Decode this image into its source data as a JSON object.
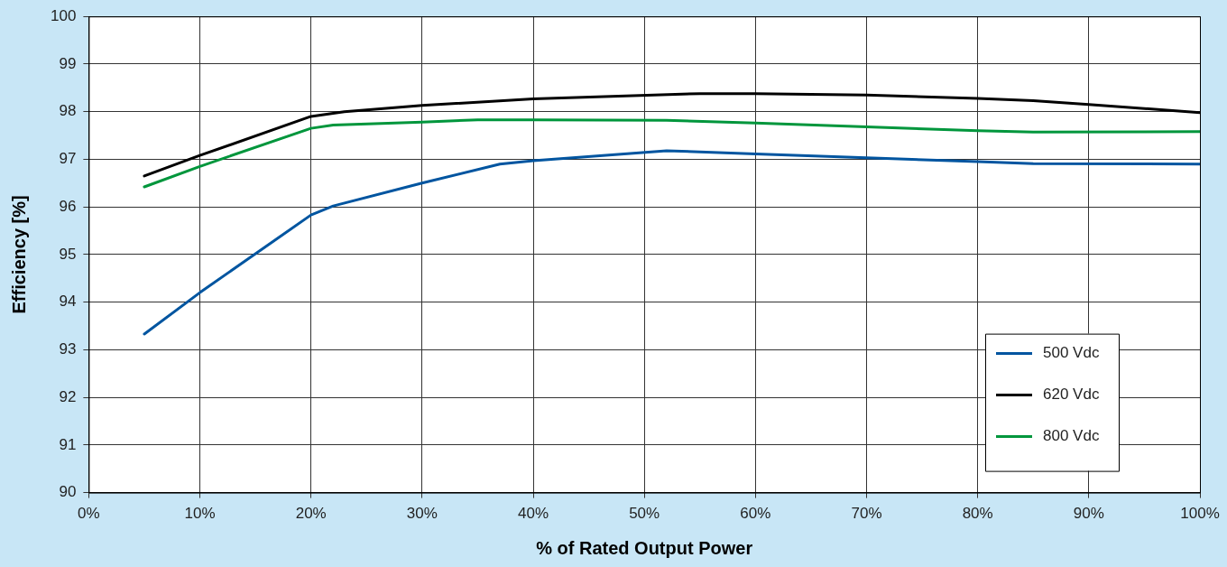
{
  "chart_data": {
    "type": "line",
    "xlabel": "% of Rated Output Power",
    "ylabel": "Efficiency [%]",
    "xlim": [
      0,
      100
    ],
    "xticks": [
      {
        "value": 0,
        "label": "0%"
      },
      {
        "value": 10,
        "label": "10%"
      },
      {
        "value": 20,
        "label": "20%"
      },
      {
        "value": 30,
        "label": "30%"
      },
      {
        "value": 40,
        "label": "40%"
      },
      {
        "value": 50,
        "label": "50%"
      },
      {
        "value": 60,
        "label": "60%"
      },
      {
        "value": 70,
        "label": "70%"
      },
      {
        "value": 80,
        "label": "80%"
      },
      {
        "value": 90,
        "label": "90%"
      },
      {
        "value": 100,
        "label": "100%"
      }
    ],
    "ylim": [
      90,
      100
    ],
    "yticks": [
      90,
      91,
      92,
      93,
      94,
      95,
      96,
      97,
      98,
      99,
      100
    ],
    "grid": true,
    "legend": "bottom right",
    "marker": "none",
    "line_style": "solid",
    "series": [
      {
        "name": "500 Vdc",
        "color": "#0055a0",
        "x": [
          5,
          10,
          20,
          22,
          30,
          37,
          40,
          52,
          60,
          70,
          80,
          85,
          100
        ],
        "values": [
          93.33,
          94.2,
          95.83,
          96.02,
          96.5,
          96.9,
          96.97,
          97.18,
          97.11,
          97.03,
          96.95,
          96.91,
          96.9
        ]
      },
      {
        "name": "620 Vdc",
        "color": "#000000",
        "x": [
          5,
          10,
          20,
          23,
          30,
          40,
          55,
          60,
          70,
          80,
          85,
          90,
          100
        ],
        "values": [
          96.65,
          97.08,
          97.9,
          98.0,
          98.13,
          98.27,
          98.38,
          98.38,
          98.35,
          98.28,
          98.23,
          98.15,
          97.98
        ]
      },
      {
        "name": "800 Vdc",
        "color": "#00963c",
        "x": [
          5,
          10,
          20,
          22,
          30,
          35,
          40,
          52,
          60,
          70,
          80,
          85,
          100
        ],
        "values": [
          96.42,
          96.85,
          97.65,
          97.72,
          97.78,
          97.83,
          97.83,
          97.82,
          97.76,
          97.68,
          97.6,
          97.57,
          97.58
        ]
      }
    ]
  }
}
